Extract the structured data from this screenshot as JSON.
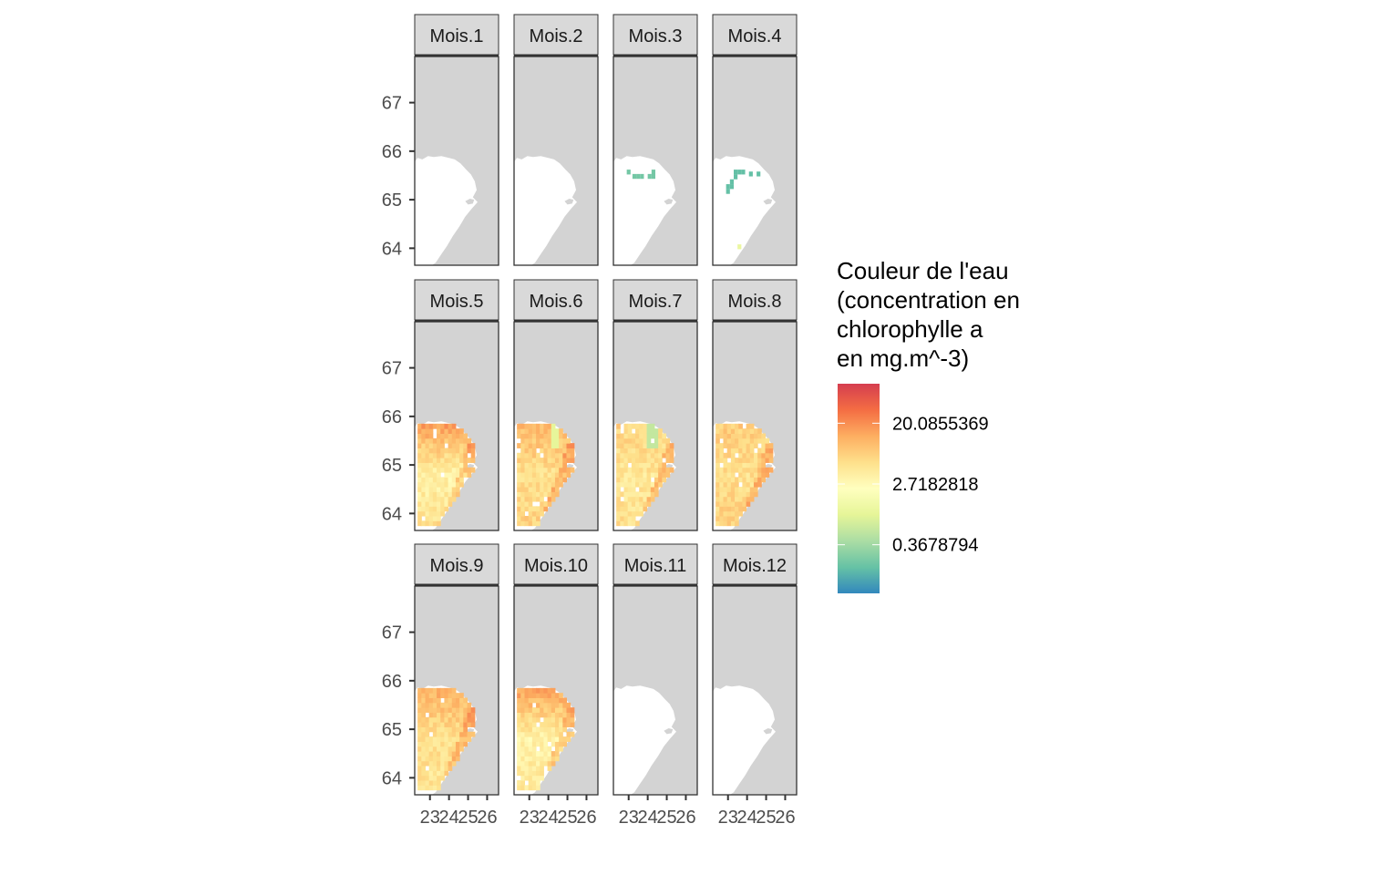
{
  "chart_data": {
    "type": "heatmap",
    "title": "",
    "xlabel": "",
    "ylabel": "",
    "facet_order": [
      "Mois.1",
      "Mois.2",
      "Mois.3",
      "Mois.4",
      "Mois.5",
      "Mois.6",
      "Mois.7",
      "Mois.8",
      "Mois.9",
      "Mois.10",
      "Mois.11",
      "Mois.12"
    ],
    "facets": [
      {
        "label": "Mois.1",
        "has_data": false,
        "mean_level": null,
        "top_level": null,
        "mid_level": null,
        "bottom_level": null
      },
      {
        "label": "Mois.2",
        "has_data": false,
        "mean_level": null,
        "top_level": null,
        "mid_level": null,
        "bottom_level": null
      },
      {
        "label": "Mois.3",
        "has_data": "sparse",
        "mean_level": 0.15,
        "top_level": 0.15,
        "mid_level": null,
        "bottom_level": null
      },
      {
        "label": "Mois.4",
        "has_data": "sparse",
        "mean_level": 0.12,
        "top_level": 0.12,
        "mid_level": 0.12,
        "bottom_level": 0.4
      },
      {
        "label": "Mois.5",
        "has_data": true,
        "mean_level": 0.62,
        "top_level": 0.78,
        "mid_level": 0.55,
        "bottom_level": 0.62
      },
      {
        "label": "Mois.6",
        "has_data": true,
        "mean_level": 0.64,
        "top_level": 0.72,
        "mid_level": 0.62,
        "bottom_level": 0.66
      },
      {
        "label": "Mois.7",
        "has_data": true,
        "mean_level": 0.62,
        "top_level": 0.66,
        "mid_level": 0.6,
        "bottom_level": 0.62
      },
      {
        "label": "Mois.8",
        "has_data": true,
        "mean_level": 0.64,
        "top_level": 0.68,
        "mid_level": 0.62,
        "bottom_level": 0.66
      },
      {
        "label": "Mois.9",
        "has_data": true,
        "mean_level": 0.64,
        "top_level": 0.74,
        "mid_level": 0.62,
        "bottom_level": 0.6
      },
      {
        "label": "Mois.10",
        "has_data": true,
        "mean_level": 0.62,
        "top_level": 0.78,
        "mid_level": 0.55,
        "bottom_level": 0.6
      },
      {
        "label": "Mois.11",
        "has_data": false,
        "mean_level": null,
        "top_level": null,
        "mid_level": null,
        "bottom_level": null
      },
      {
        "label": "Mois.12",
        "has_data": false,
        "mean_level": null,
        "top_level": null,
        "mid_level": null,
        "bottom_level": null
      }
    ],
    "x_axis": {
      "ticks": [
        23,
        24,
        25,
        26
      ],
      "tick_labels": [
        "23",
        "24",
        "25",
        "26"
      ],
      "range": [
        22.2,
        26.6
      ]
    },
    "y_axis": {
      "ticks": [
        64,
        65,
        66,
        67
      ],
      "tick_labels": [
        "64",
        "65",
        "66",
        "67"
      ],
      "range": [
        63.65,
        67.95
      ]
    },
    "legend": {
      "title_lines": [
        "Couleur de l'eau",
        "(concentration en",
        "chlorophylle a",
        "en mg.m^-3)"
      ],
      "scale": "log",
      "breaks": [
        20.0855369,
        2.7182818,
        0.3678794
      ],
      "break_labels": [
        "20.0855369",
        "2.7182818",
        "0.3678794"
      ],
      "log_range": [
        -2.6,
        4.3
      ],
      "palette": "Spectral",
      "colors": [
        "#3288bd",
        "#66c2a5",
        "#abdda4",
        "#e6f598",
        "#ffffbf",
        "#fee08b",
        "#fdae61",
        "#f46d43",
        "#d53e4f"
      ],
      "position": "right"
    },
    "panel_background": "#d3d3d3",
    "land_color": "#ffffff",
    "grid": false
  }
}
